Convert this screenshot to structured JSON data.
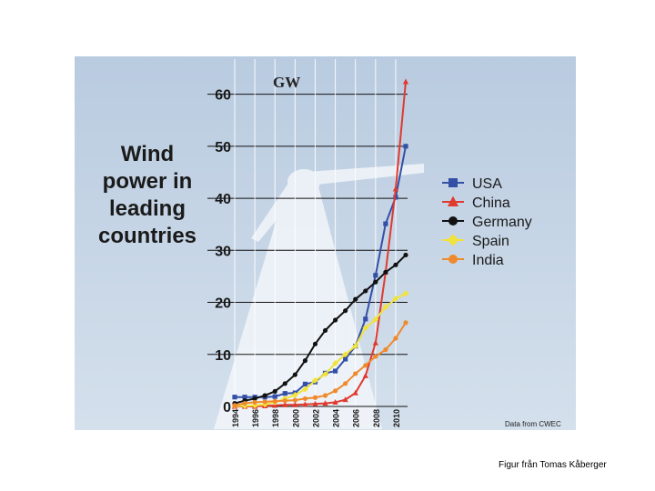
{
  "caption": "Figur från Tomas Kåberger",
  "chart_data": {
    "type": "line",
    "title_lines": [
      "Wind",
      "power in",
      "leading",
      "countries"
    ],
    "ylabel": "GW",
    "source": "Data from CWEC",
    "ylim": [
      0,
      65
    ],
    "yticks": [
      0,
      10,
      20,
      30,
      40,
      50,
      60
    ],
    "xlim": [
      1994,
      2011
    ],
    "xticks": [
      1994,
      1996,
      1998,
      2000,
      2002,
      2004,
      2006,
      2008,
      2010
    ],
    "grid": true,
    "legend_position": "right",
    "x": [
      1994,
      1995,
      1996,
      1997,
      1998,
      1999,
      2000,
      2001,
      2002,
      2003,
      2004,
      2005,
      2006,
      2007,
      2008,
      2009,
      2010,
      2011
    ],
    "series": [
      {
        "name": "USA",
        "color": "#3350a6",
        "marker": "square",
        "values": [
          1.8,
          1.8,
          1.8,
          1.8,
          1.9,
          2.5,
          2.6,
          4.3,
          4.7,
          6.4,
          6.8,
          9.1,
          11.6,
          16.8,
          25.2,
          35.1,
          40.2,
          50.0
        ]
      },
      {
        "name": "China",
        "color": "#e03a2f",
        "marker": "triangle",
        "values": [
          0.0,
          0.0,
          0.0,
          0.1,
          0.2,
          0.3,
          0.3,
          0.4,
          0.5,
          0.6,
          0.8,
          1.3,
          2.6,
          5.9,
          12.2,
          25.8,
          41.8,
          62.4
        ]
      },
      {
        "name": "Germany",
        "color": "#111111",
        "marker": "circle",
        "values": [
          0.6,
          1.1,
          1.5,
          2.1,
          2.9,
          4.4,
          6.1,
          8.8,
          12.0,
          14.6,
          16.6,
          18.4,
          20.6,
          22.2,
          23.9,
          25.8,
          27.2,
          29.1
        ]
      },
      {
        "name": "Spain",
        "color": "#f1e33a",
        "marker": "diamond",
        "values": [
          0.1,
          0.1,
          0.2,
          0.4,
          0.8,
          1.5,
          2.2,
          3.3,
          5.0,
          6.2,
          8.3,
          10.0,
          11.6,
          15.1,
          16.7,
          19.1,
          20.7,
          21.7
        ]
      },
      {
        "name": "India",
        "color": "#ef8a2c",
        "marker": "circle",
        "values": [
          0.2,
          0.6,
          0.8,
          0.9,
          1.0,
          1.1,
          1.2,
          1.5,
          1.7,
          2.1,
          3.0,
          4.4,
          6.3,
          7.9,
          9.6,
          10.9,
          13.1,
          16.1
        ]
      }
    ]
  }
}
